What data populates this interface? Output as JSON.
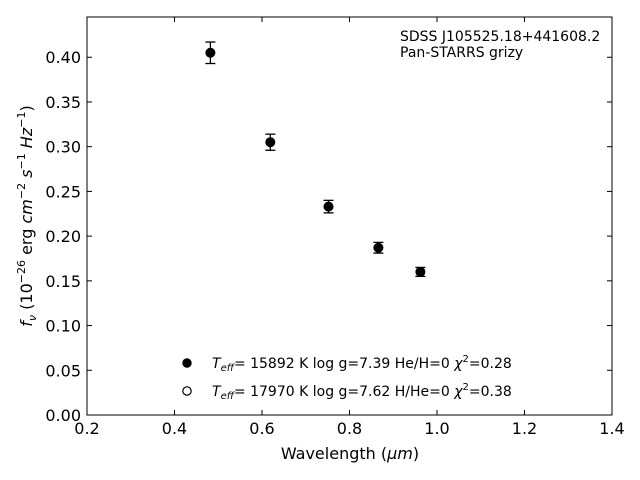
{
  "chart_data": {
    "type": "scatter",
    "xlabel_main": "Wavelength (",
    "xlabel_mu": "μm",
    "xlabel_end": ")",
    "ylabel": {
      "f": "f",
      "nu": "ν",
      "open": " (10",
      "exp26": "−26",
      "erg": " erg ",
      "cm": "cm",
      "exp2": "−2",
      "s": " s",
      "exp1": "−1",
      "hz": " Hz",
      "exp1b": "−1",
      "close": ")"
    },
    "xlim": [
      0.2,
      1.4
    ],
    "ylim": [
      0.0,
      0.445
    ],
    "xticks": [
      0.2,
      0.4,
      0.6,
      0.8,
      1.0,
      1.2,
      1.4
    ],
    "xtick_labels": [
      "0.2",
      "0.4",
      "0.6",
      "0.8",
      "1.0",
      "1.2",
      "1.4"
    ],
    "yticks": [
      0.0,
      0.05,
      0.1,
      0.15,
      0.2,
      0.25,
      0.3,
      0.35,
      0.4
    ],
    "ytick_labels": [
      "0.00",
      "0.05",
      "0.10",
      "0.15",
      "0.20",
      "0.25",
      "0.30",
      "0.35",
      "0.40"
    ],
    "annotation": {
      "line1": "SDSS J105525.18+441608.2",
      "line2": "Pan-STARRS grizy"
    },
    "series": [
      {
        "name": "Teff= 15892 K log g=7.39 He/H=0 χ2=0.28",
        "marker": "filled-circle",
        "color": "#000000",
        "points": [
          {
            "x": 0.482,
            "y": 0.405,
            "yerr": 0.012
          },
          {
            "x": 0.619,
            "y": 0.305,
            "yerr": 0.009
          },
          {
            "x": 0.752,
            "y": 0.233,
            "yerr": 0.007
          },
          {
            "x": 0.866,
            "y": 0.187,
            "yerr": 0.006
          },
          {
            "x": 0.962,
            "y": 0.16,
            "yerr": 0.005
          }
        ]
      },
      {
        "name": "Teff= 17970 K log g=7.62 H/He=0 χ2=0.38",
        "marker": "open-circle",
        "color": "#000000",
        "points": [
          {
            "x": 0.482,
            "y": 0.405
          },
          {
            "x": 0.619,
            "y": 0.305
          },
          {
            "x": 0.752,
            "y": 0.233
          },
          {
            "x": 0.866,
            "y": 0.187
          },
          {
            "x": 0.962,
            "y": 0.16
          }
        ]
      }
    ],
    "legend": {
      "placement": "lower-center",
      "entries": [
        {
          "T": "T",
          "eff": "eff",
          "rest": "= 15892 K  log g=7.39  He/H=0  ",
          "chi": "χ",
          "chi_exp": "2",
          "chi_val": "=0.28"
        },
        {
          "T": "T",
          "eff": "eff",
          "rest": "= 17970 K  log g=7.62  H/He=0  ",
          "chi": "χ",
          "chi_exp": "2",
          "chi_val": "=0.38"
        }
      ]
    }
  }
}
